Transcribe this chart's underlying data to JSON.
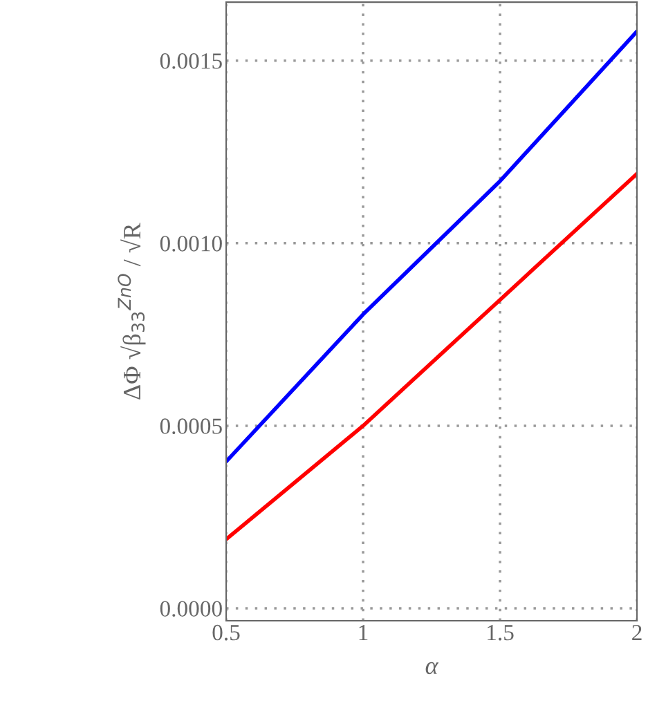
{
  "chart_data": {
    "type": "line",
    "xlabel": "α",
    "ylabel": "ΔΦ √β$_{33}$$^{ZnO}$ / √R",
    "x": [
      0.5,
      1,
      1.5,
      2
    ],
    "series": [
      {
        "color": "#0000ff",
        "values": [
          0.000402,
          0.000805,
          0.00117,
          0.00158
        ]
      },
      {
        "color": "#ff0000",
        "values": [
          0.000189,
          0.0005,
          0.000845,
          0.00119
        ]
      }
    ],
    "xlim": [
      0.5,
      2
    ],
    "xticks": [
      0.5,
      1,
      1.5,
      2
    ],
    "ylim": [
      -3.4e-05,
      0.00166
    ],
    "yticks": [
      {
        "value": 0,
        "label": "0.0000"
      },
      {
        "value": 0.0005,
        "label": "0.0005"
      },
      {
        "value": 0.001,
        "label": "0.0010"
      },
      {
        "value": 0.0015,
        "label": "0.0015"
      }
    ],
    "grid": true,
    "line_style": "solid"
  }
}
